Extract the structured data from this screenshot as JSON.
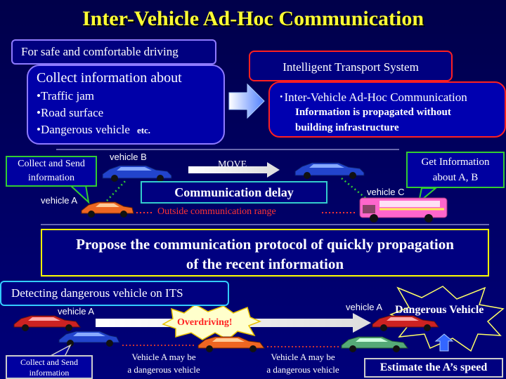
{
  "title": "Inter-Vehicle Ad-Hoc Communication",
  "top_left": {
    "tag": "For safe and comfortable driving",
    "heading": "Collect information about",
    "items": [
      "•Traffic jam",
      "•Road surface",
      "•Dangerous vehicle"
    ],
    "etc": "etc."
  },
  "top_right": {
    "tag": "Intelligent Transport System",
    "item": "･Inter-Vehicle Ad-Hoc Communication",
    "desc_line1": "Information is propagated without",
    "desc_line2": "building infrastructure"
  },
  "scenario1": {
    "collect_line1": "Collect and Send",
    "collect_line2": "information",
    "vehicle_a": "vehicle A",
    "vehicle_b": "vehicle B",
    "vehicle_c": "vehicle C",
    "move": "MOVE",
    "get_line1": "Get Information",
    "get_line2": "about A, B",
    "delay": "Communication delay",
    "outside": "Outside communication range"
  },
  "proposal": {
    "line1": "Propose the communication protocol of quickly propagation",
    "line2": "of the recent information"
  },
  "scenario2": {
    "tag": "Detecting dangerous vehicle on ITS",
    "vehicle_a_left": "vehicle A",
    "vehicle_a_right": "vehicle A",
    "overdriving": "Overdriving!",
    "dangerous": "Dangerous Vehicle",
    "collect_line1": "Collect and Send",
    "collect_line2": "information",
    "maybe1_line1": "Vehicle A may be",
    "maybe1_line2": "a dangerous vehicle",
    "maybe2_line1": "Vehicle A may be",
    "maybe2_line2": "a dangerous vehicle",
    "estimate": "Estimate the A’s speed"
  },
  "colors": {
    "title": "#ffff33",
    "red_car": "#cc2222",
    "blue_car": "#2244cc",
    "orange_car": "#ee6622",
    "green_car": "#55aa77",
    "bus": "#ff66cc"
  }
}
